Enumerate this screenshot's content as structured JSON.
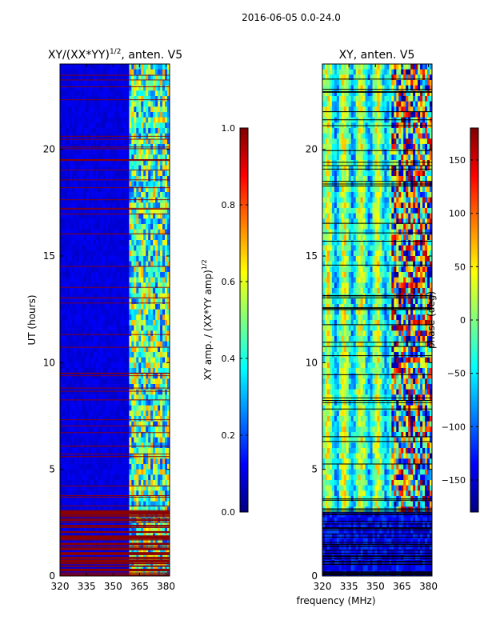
{
  "figure": {
    "suptitle": "2016-06-05 0.0-24.0",
    "xlabel": "frequency (MHz)"
  },
  "colormap_stops": [
    "#00007f",
    "#0000ff",
    "#007fff",
    "#00ffff",
    "#7fff7f",
    "#ffff00",
    "#ff7f00",
    "#ff0000",
    "#7f0000"
  ],
  "chart_data": [
    {
      "type": "heatmap",
      "title_text": "XY/(XX*YY)",
      "title_sup": "1/2",
      "title_suffix": ", anten. V5",
      "ylabel": "UT (hours)",
      "ylim": [
        0,
        24
      ],
      "yticks": [
        "0",
        "5",
        "10",
        "15",
        "20"
      ],
      "ytick_values": [
        0,
        5,
        10,
        15,
        20
      ],
      "xlim": [
        320,
        382
      ],
      "xticks": [
        "320",
        "335",
        "350",
        "365",
        "380"
      ],
      "xtick_values": [
        320,
        335,
        350,
        365,
        380
      ],
      "active_band_start_mhz": 359,
      "colorbar": {
        "label_main": "XY amp. / (XX*YY amp)",
        "label_sup": "1/2",
        "range": [
          0.0,
          1.0
        ],
        "ticks": [
          "0.0",
          "0.2",
          "0.4",
          "0.6",
          "0.8",
          "1.0"
        ],
        "tick_values": [
          0.0,
          0.2,
          0.4,
          0.6,
          0.8,
          1.0
        ]
      }
    },
    {
      "type": "heatmap",
      "title_text": "XY, anten. V5",
      "ylim": [
        0,
        24
      ],
      "yticks": [
        "0",
        "5",
        "10",
        "15",
        "20"
      ],
      "ytick_values": [
        0,
        5,
        10,
        15,
        20
      ],
      "xlim": [
        320,
        382
      ],
      "xticks": [
        "320",
        "335",
        "350",
        "365",
        "380"
      ],
      "xtick_values": [
        320,
        335,
        350,
        365,
        380
      ],
      "active_band_start_mhz": 359,
      "colorbar": {
        "label": "phase (deg)",
        "range": [
          -180,
          180
        ],
        "ticks": [
          "−150",
          "−100",
          "−50",
          "0",
          "50",
          "100",
          "150"
        ],
        "tick_values": [
          -150,
          -100,
          -50,
          0,
          50,
          100,
          150
        ]
      }
    }
  ]
}
